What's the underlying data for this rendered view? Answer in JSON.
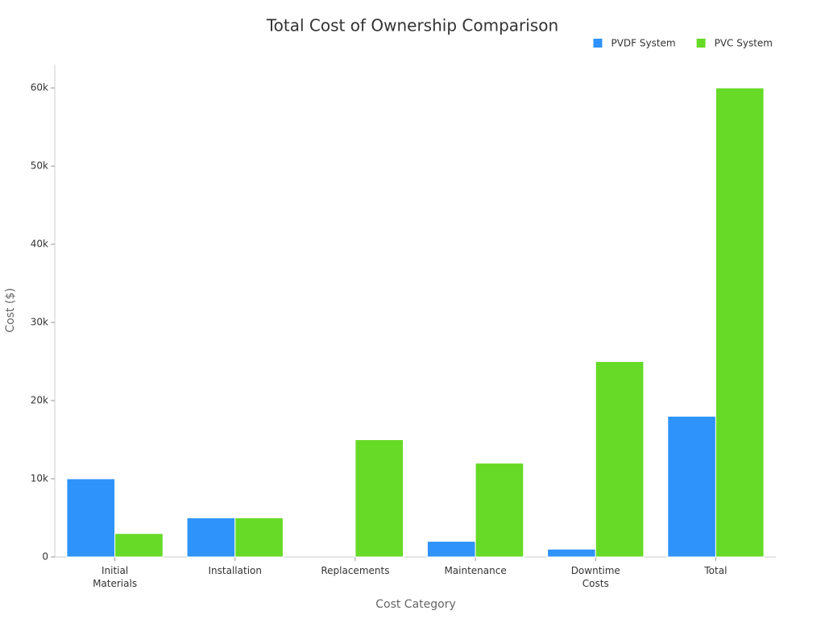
{
  "chart_data": {
    "type": "bar",
    "title": "Total Cost of Ownership Comparison",
    "x_label": "Cost Category",
    "y_label": "Cost ($)",
    "categories": [
      "Initial Materials",
      "Installation",
      "Replacements",
      "Maintenance",
      "Downtime Costs",
      "Total"
    ],
    "series": [
      {
        "name": "PVDF System",
        "color": "#2e93fa",
        "values": [
          10000,
          5000,
          0,
          2000,
          1000,
          18000
        ]
      },
      {
        "name": "PVC System",
        "color": "#66da26",
        "values": [
          3000,
          5000,
          15000,
          12000,
          25000,
          60000
        ]
      }
    ],
    "ylim": [
      0,
      63000
    ],
    "yticks": [
      0,
      {
        "value": 10000,
        "label": "10k"
      },
      {
        "value": 20000,
        "label": "20k"
      },
      {
        "value": 30000,
        "label": "30k"
      },
      {
        "value": 40000,
        "label": "40k"
      },
      {
        "value": 50000,
        "label": "50k"
      },
      {
        "value": 60000,
        "label": "60k"
      }
    ],
    "legend": "top-right"
  }
}
